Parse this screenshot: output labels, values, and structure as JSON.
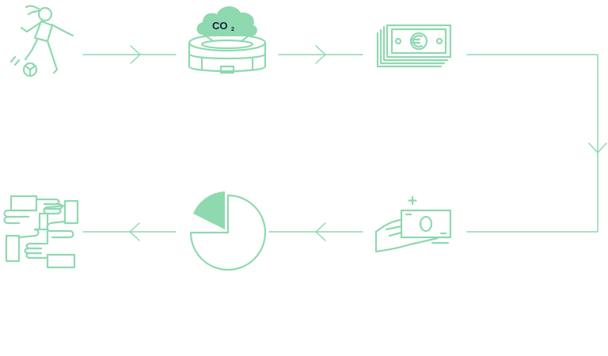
{
  "colors": {
    "stroke": "#8fd9b0",
    "fill": "#8fd9b0",
    "text": "#17203a",
    "background": "#ffffff"
  },
  "nodes": [
    {
      "id": "player",
      "icon": "football-player-icon"
    },
    {
      "id": "stadium",
      "icon": "stadium-co2-cloud-icon",
      "label": "CO",
      "subscript": "2"
    },
    {
      "id": "money",
      "icon": "euro-banknotes-icon"
    },
    {
      "id": "payment",
      "icon": "hand-with-banknote-icon"
    },
    {
      "id": "allocation",
      "icon": "pie-chart-icon"
    },
    {
      "id": "cooperation",
      "icon": "joined-hands-icon"
    }
  ],
  "flow": [
    "player",
    "stadium",
    "money",
    "payment",
    "allocation",
    "cooperation"
  ]
}
